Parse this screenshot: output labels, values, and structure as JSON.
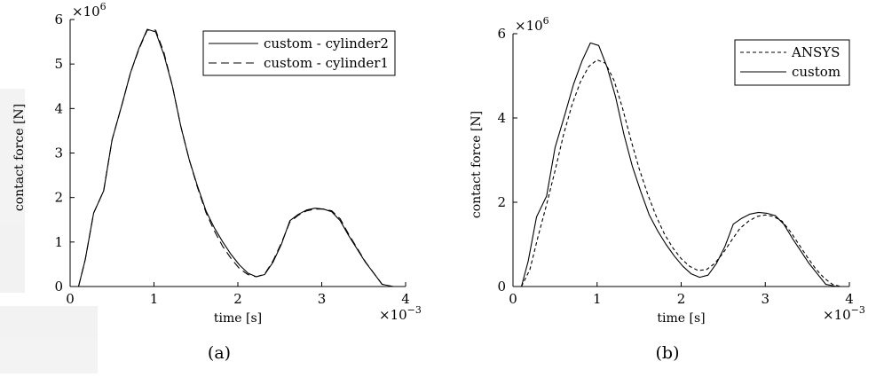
{
  "chart_data": [
    {
      "type": "line",
      "panel_caption": "(a)",
      "xlabel": "time [s]",
      "ylabel": "contact force [N]",
      "x_multiplier": "×10",
      "x_multiplier_exp": "−3",
      "y_multiplier": "×10",
      "y_multiplier_exp": "6",
      "xlim": [
        0,
        4
      ],
      "ylim": [
        0,
        6
      ],
      "xticks": [
        "0",
        "1",
        "2",
        "3",
        "4"
      ],
      "yticks": [
        "0",
        "1",
        "2",
        "3",
        "4",
        "5",
        "6"
      ],
      "legend_position": "top-right",
      "grid": false,
      "series": [
        {
          "name": "custom - cylinder2",
          "style": "solid",
          "points": [
            [
              0.1,
              0
            ],
            [
              0.18,
              0.6
            ],
            [
              0.28,
              1.65
            ],
            [
              0.4,
              2.15
            ],
            [
              0.5,
              3.3
            ],
            [
              0.62,
              4.1
            ],
            [
              0.72,
              4.8
            ],
            [
              0.82,
              5.35
            ],
            [
              0.92,
              5.78
            ],
            [
              1.02,
              5.72
            ],
            [
              1.12,
              5.2
            ],
            [
              1.22,
              4.5
            ],
            [
              1.32,
              3.6
            ],
            [
              1.42,
              2.85
            ],
            [
              1.52,
              2.25
            ],
            [
              1.62,
              1.7
            ],
            [
              1.72,
              1.32
            ],
            [
              1.82,
              1.0
            ],
            [
              1.92,
              0.72
            ],
            [
              2.02,
              0.48
            ],
            [
              2.12,
              0.3
            ],
            [
              2.22,
              0.22
            ],
            [
              2.32,
              0.27
            ],
            [
              2.42,
              0.55
            ],
            [
              2.52,
              0.95
            ],
            [
              2.62,
              1.48
            ],
            [
              2.72,
              1.62
            ],
            [
              2.82,
              1.72
            ],
            [
              2.92,
              1.76
            ],
            [
              3.02,
              1.74
            ],
            [
              3.12,
              1.68
            ],
            [
              3.22,
              1.48
            ],
            [
              3.32,
              1.15
            ],
            [
              3.42,
              0.85
            ],
            [
              3.52,
              0.55
            ],
            [
              3.62,
              0.3
            ],
            [
              3.72,
              0.05
            ],
            [
              3.85,
              0
            ]
          ]
        },
        {
          "name": "custom - cylinder1",
          "style": "dashed",
          "points": [
            [
              0.1,
              0
            ],
            [
              0.18,
              0.6
            ],
            [
              0.28,
              1.65
            ],
            [
              0.4,
              2.15
            ],
            [
              0.5,
              3.3
            ],
            [
              0.62,
              4.1
            ],
            [
              0.72,
              4.8
            ],
            [
              0.82,
              5.33
            ],
            [
              0.92,
              5.76
            ],
            [
              1.02,
              5.76
            ],
            [
              1.12,
              5.25
            ],
            [
              1.22,
              4.5
            ],
            [
              1.32,
              3.6
            ],
            [
              1.42,
              2.85
            ],
            [
              1.52,
              2.22
            ],
            [
              1.62,
              1.66
            ],
            [
              1.72,
              1.25
            ],
            [
              1.82,
              0.9
            ],
            [
              1.92,
              0.63
            ],
            [
              2.02,
              0.4
            ],
            [
              2.12,
              0.27
            ],
            [
              2.22,
              0.22
            ],
            [
              2.32,
              0.28
            ],
            [
              2.42,
              0.58
            ],
            [
              2.52,
              0.98
            ],
            [
              2.62,
              1.45
            ],
            [
              2.72,
              1.6
            ],
            [
              2.82,
              1.7
            ],
            [
              2.92,
              1.74
            ],
            [
              3.02,
              1.74
            ],
            [
              3.12,
              1.7
            ],
            [
              3.22,
              1.52
            ],
            [
              3.32,
              1.18
            ],
            [
              3.42,
              0.87
            ],
            [
              3.52,
              0.56
            ],
            [
              3.62,
              0.3
            ],
            [
              3.72,
              0.05
            ],
            [
              3.85,
              0
            ]
          ]
        }
      ]
    },
    {
      "type": "line",
      "panel_caption": "(b)",
      "xlabel": "time [s]",
      "ylabel": "contact force [N]",
      "x_multiplier": "×10",
      "x_multiplier_exp": "−3",
      "y_multiplier": "×10",
      "y_multiplier_exp": "6",
      "xlim": [
        0,
        4
      ],
      "ylim": [
        0,
        6
      ],
      "xticks": [
        "0",
        "1",
        "2",
        "3",
        "4"
      ],
      "yticks": [
        "0",
        "2",
        "4",
        "6"
      ],
      "legend_position": "top-right",
      "grid": false,
      "series": [
        {
          "name": "ANSYS",
          "style": "dashed",
          "points": [
            [
              0.1,
              0
            ],
            [
              0.2,
              0.4
            ],
            [
              0.3,
              1.2
            ],
            [
              0.4,
              1.95
            ],
            [
              0.5,
              2.75
            ],
            [
              0.6,
              3.6
            ],
            [
              0.7,
              4.3
            ],
            [
              0.8,
              4.85
            ],
            [
              0.9,
              5.22
            ],
            [
              1.0,
              5.38
            ],
            [
              1.1,
              5.3
            ],
            [
              1.2,
              4.9
            ],
            [
              1.3,
              4.25
            ],
            [
              1.4,
              3.5
            ],
            [
              1.5,
              2.8
            ],
            [
              1.6,
              2.2
            ],
            [
              1.7,
              1.68
            ],
            [
              1.8,
              1.25
            ],
            [
              1.9,
              0.92
            ],
            [
              2.0,
              0.66
            ],
            [
              2.1,
              0.48
            ],
            [
              2.2,
              0.38
            ],
            [
              2.3,
              0.4
            ],
            [
              2.4,
              0.55
            ],
            [
              2.5,
              0.8
            ],
            [
              2.6,
              1.1
            ],
            [
              2.7,
              1.38
            ],
            [
              2.8,
              1.55
            ],
            [
              2.9,
              1.66
            ],
            [
              3.0,
              1.7
            ],
            [
              3.1,
              1.66
            ],
            [
              3.2,
              1.55
            ],
            [
              3.3,
              1.3
            ],
            [
              3.4,
              1.0
            ],
            [
              3.5,
              0.7
            ],
            [
              3.6,
              0.42
            ],
            [
              3.7,
              0.2
            ],
            [
              3.8,
              0.05
            ],
            [
              3.9,
              0
            ]
          ]
        },
        {
          "name": "custom",
          "style": "solid",
          "points": [
            [
              0.1,
              0
            ],
            [
              0.18,
              0.6
            ],
            [
              0.28,
              1.65
            ],
            [
              0.4,
              2.15
            ],
            [
              0.5,
              3.3
            ],
            [
              0.62,
              4.1
            ],
            [
              0.72,
              4.8
            ],
            [
              0.82,
              5.35
            ],
            [
              0.92,
              5.78
            ],
            [
              1.02,
              5.72
            ],
            [
              1.12,
              5.2
            ],
            [
              1.22,
              4.5
            ],
            [
              1.32,
              3.6
            ],
            [
              1.42,
              2.85
            ],
            [
              1.52,
              2.25
            ],
            [
              1.62,
              1.7
            ],
            [
              1.72,
              1.32
            ],
            [
              1.82,
              1.0
            ],
            [
              1.92,
              0.72
            ],
            [
              2.02,
              0.48
            ],
            [
              2.12,
              0.3
            ],
            [
              2.22,
              0.22
            ],
            [
              2.32,
              0.27
            ],
            [
              2.42,
              0.55
            ],
            [
              2.52,
              0.95
            ],
            [
              2.62,
              1.48
            ],
            [
              2.72,
              1.62
            ],
            [
              2.82,
              1.72
            ],
            [
              2.92,
              1.76
            ],
            [
              3.02,
              1.74
            ],
            [
              3.12,
              1.68
            ],
            [
              3.22,
              1.48
            ],
            [
              3.32,
              1.15
            ],
            [
              3.42,
              0.85
            ],
            [
              3.52,
              0.55
            ],
            [
              3.62,
              0.3
            ],
            [
              3.72,
              0.05
            ],
            [
              3.85,
              0
            ]
          ]
        }
      ]
    }
  ]
}
